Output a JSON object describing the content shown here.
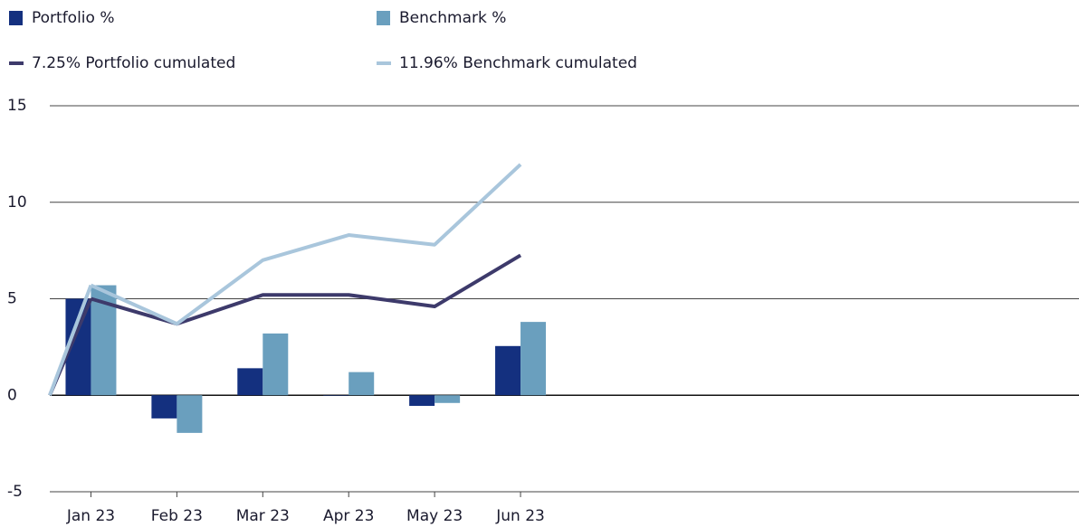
{
  "chart_data": {
    "type": "bar",
    "categories": [
      "Jan 23",
      "Feb 23",
      "Mar 23",
      "Apr 23",
      "May 23",
      "Jun 23",
      null,
      null,
      null,
      null,
      null,
      null
    ],
    "series": [
      {
        "name": "Portfolio %",
        "type": "bar",
        "color": "#14307f",
        "values": [
          5.0,
          -1.2,
          1.4,
          0,
          -0.55,
          2.55,
          null,
          null,
          null,
          null,
          null,
          null
        ]
      },
      {
        "name": "Benchmark %",
        "type": "bar",
        "color": "#6a9fbe",
        "values": [
          5.7,
          -1.95,
          3.2,
          1.2,
          -0.4,
          3.8,
          null,
          null,
          null,
          null,
          null,
          null
        ]
      },
      {
        "name": "7.25%  Portfolio cumulated",
        "type": "line",
        "color": "#3d3a6b",
        "values": [
          5.0,
          3.7,
          5.2,
          5.2,
          4.6,
          7.25,
          null,
          null,
          null,
          null,
          null,
          null
        ]
      },
      {
        "name": "11.96%  Benchmark cumulated",
        "type": "line",
        "color": "#a9c6dc",
        "values": [
          5.7,
          3.7,
          7.0,
          8.3,
          7.8,
          11.96,
          null,
          null,
          null,
          null,
          null,
          null
        ]
      }
    ],
    "ylim": [
      -5,
      15
    ],
    "yticks": [
      -5,
      0,
      5,
      10,
      15
    ],
    "grid": true
  }
}
